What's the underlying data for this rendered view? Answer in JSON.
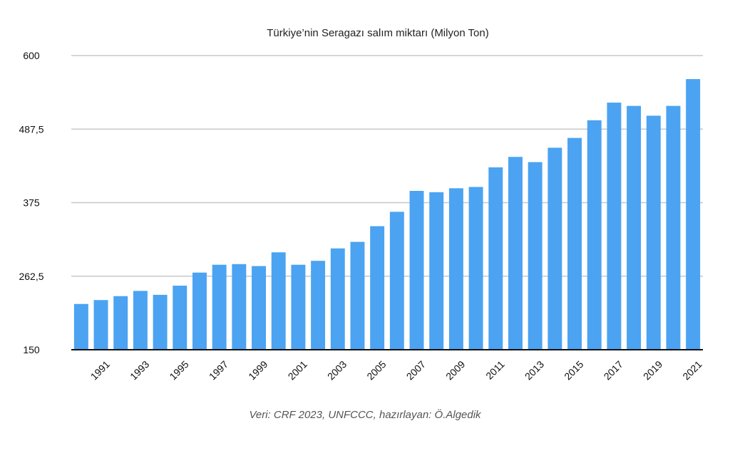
{
  "chart_data": {
    "type": "bar",
    "title": "Türkiye’nin Seragazı salım miktarı (Milyon Ton)",
    "xlabel": "",
    "ylabel": "",
    "ylim": [
      150,
      600
    ],
    "yticks": [
      "600",
      "487,5",
      "375",
      "262,5",
      "150"
    ],
    "ytick_values": [
      600,
      487.5,
      375,
      262.5,
      150
    ],
    "grid": true,
    "legend": "none",
    "bar_color": "#4BA3F2",
    "categories": [
      "1990",
      "1991",
      "1992",
      "1993",
      "1994",
      "1995",
      "1996",
      "1997",
      "1998",
      "1999",
      "2000",
      "2001",
      "2002",
      "2003",
      "2004",
      "2005",
      "2006",
      "2007",
      "2008",
      "2009",
      "2010",
      "2011",
      "2012",
      "2013",
      "2014",
      "2015",
      "2016",
      "2017",
      "2018",
      "2019",
      "2020",
      "2021"
    ],
    "xtick_labels": [
      "1991",
      "1993",
      "1995",
      "1997",
      "1999",
      "2001",
      "2003",
      "2005",
      "2007",
      "2009",
      "2011",
      "2013",
      "2015",
      "2017",
      "2019",
      "2021"
    ],
    "values": [
      220,
      226,
      232,
      240,
      234,
      248,
      268,
      280,
      281,
      278,
      299,
      280,
      286,
      305,
      315,
      339,
      361,
      393,
      391,
      397,
      399,
      429,
      445,
      437,
      459,
      474,
      501,
      528,
      523,
      508,
      523,
      564
    ]
  },
  "source_note": "Veri: CRF 2023, UNFCCC, hazırlayan: Ö.Algedik"
}
